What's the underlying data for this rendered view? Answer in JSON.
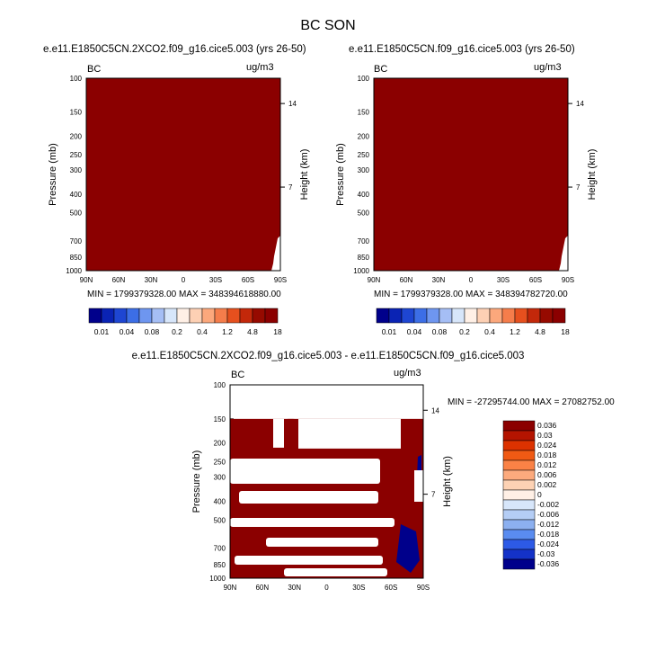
{
  "page_title": "BC SON",
  "colors": {
    "max_red": "#8b0000",
    "dark_blue": "#00008b",
    "white": "#ffffff"
  },
  "chart_data": [
    {
      "type": "heatmap",
      "title": "e.e11.E1850C5CN.2XCO2.f09_g16.cice5.003 (yrs 26-50)",
      "left_label": "BC",
      "units": "ug/m3",
      "ylabel": "Pressure (mb)",
      "ylabel_right": "Height (km)",
      "x_ticks": [
        "90N",
        "60N",
        "30N",
        "0",
        "30S",
        "60S",
        "90S"
      ],
      "y_ticks": [
        "100",
        "150",
        "200",
        "250",
        "300",
        "400",
        "500",
        "700",
        "850",
        "1000"
      ],
      "y_right_ticks": [
        "14",
        "7"
      ],
      "min_max": "MIN = 1799379328.00   MAX = 348394618880.00",
      "fill": "all levels above 18 (saturated dark red)",
      "colorbar_labels": [
        "0.01",
        "0.04",
        "0.08",
        "0.2",
        "0.4",
        "1.2",
        "4.8",
        "18"
      ],
      "colorbar_colors": [
        "#00008b",
        "#0a23b4",
        "#1e46d2",
        "#3c6ee6",
        "#6e96f0",
        "#a5bef5",
        "#d7e6fa",
        "#fff0e6",
        "#fdd0b4",
        "#fca87c",
        "#f57d4b",
        "#e6501e",
        "#c3280a",
        "#960a00",
        "#8b0000"
      ]
    },
    {
      "type": "heatmap",
      "title": "e.e11.E1850C5CN.f09_g16.cice5.003 (yrs 26-50)",
      "left_label": "BC",
      "units": "ug/m3",
      "ylabel": "Pressure (mb)",
      "ylabel_right": "Height (km)",
      "x_ticks": [
        "90N",
        "60N",
        "30N",
        "0",
        "30S",
        "60S",
        "90S"
      ],
      "y_ticks": [
        "100",
        "150",
        "200",
        "250",
        "300",
        "400",
        "500",
        "700",
        "850",
        "1000"
      ],
      "y_right_ticks": [
        "14",
        "7"
      ],
      "min_max": "MIN = 1799379328.00   MAX = 348394782720.00",
      "fill": "all levels above 18 (saturated dark red)",
      "colorbar_labels": [
        "0.01",
        "0.04",
        "0.08",
        "0.2",
        "0.4",
        "1.2",
        "4.8",
        "18"
      ],
      "colorbar_colors": [
        "#00008b",
        "#0a23b4",
        "#1e46d2",
        "#3c6ee6",
        "#6e96f0",
        "#a5bef5",
        "#d7e6fa",
        "#fff0e6",
        "#fdd0b4",
        "#fca87c",
        "#f57d4b",
        "#e6501e",
        "#c3280a",
        "#960a00",
        "#8b0000"
      ]
    },
    {
      "type": "heatmap",
      "title": "e.e11.E1850C5CN.2XCO2.f09_g16.cice5.003 - e.e11.E1850C5CN.f09_g16.cice5.003",
      "left_label": "BC",
      "units": "ug/m3",
      "ylabel": "Pressure (mb)",
      "ylabel_right": "Height (km)",
      "x_ticks": [
        "90N",
        "60N",
        "30N",
        "0",
        "30S",
        "60S",
        "90S"
      ],
      "y_ticks": [
        "100",
        "150",
        "200",
        "250",
        "300",
        "400",
        "500",
        "700",
        "850",
        "1000"
      ],
      "y_right_ticks": [
        "14",
        "7"
      ],
      "min_max": "MIN = -27295744.00   MAX = 27082752.00",
      "colorbar_labels": [
        "0.036",
        "0.03",
        "0.024",
        "0.018",
        "0.012",
        "0.006",
        "0.002",
        "0",
        "-0.002",
        "-0.006",
        "-0.012",
        "-0.018",
        "-0.024",
        "-0.03",
        "-0.036"
      ],
      "colorbar_colors": [
        "#8b0000",
        "#b41400",
        "#dc3200",
        "#f05a14",
        "#fa8246",
        "#fcaa7d",
        "#fdd2b4",
        "#fff0e6",
        "#d7e6fa",
        "#b4cdf5",
        "#8cb0f0",
        "#5a8cf0",
        "#2d5ae6",
        "#1432c8",
        "#00008b"
      ]
    }
  ]
}
